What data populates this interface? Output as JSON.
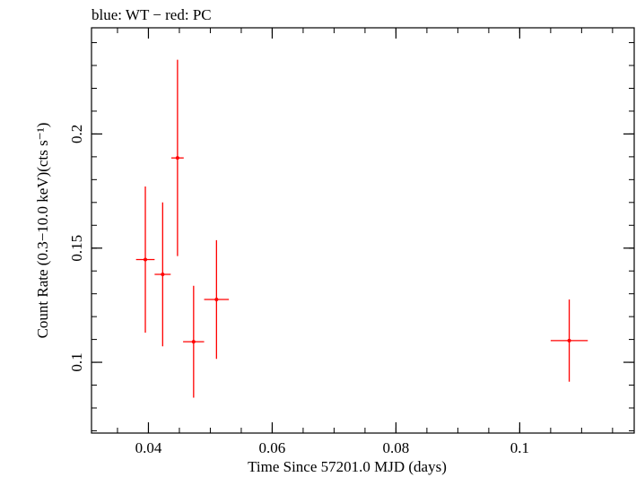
{
  "chart_data": {
    "type": "scatter",
    "title": "blue: WT − red: PC",
    "xlabel": "Time Since 57201.0 MJD (days)",
    "ylabel": "Count Rate (0.3−10.0 keV)(cts s⁻¹)",
    "xlim": [
      0.0308,
      0.1185
    ],
    "ylim": [
      0.069,
      0.2465
    ],
    "x_ticks": [
      {
        "value": 0.04,
        "label": "0.04"
      },
      {
        "value": 0.06,
        "label": "0.06"
      },
      {
        "value": 0.08,
        "label": "0.08"
      },
      {
        "value": 0.1,
        "label": "0.1"
      }
    ],
    "y_ticks": [
      {
        "value": 0.1,
        "label": "0.1"
      },
      {
        "value": 0.15,
        "label": "0.15"
      },
      {
        "value": 0.2,
        "label": "0.2"
      }
    ],
    "x_minor_step": 0.005,
    "y_minor_step": 0.01,
    "series": [
      {
        "name": "PC",
        "color": "#ff0000",
        "points": [
          {
            "x": 0.0395,
            "xerr": 0.0015,
            "y": 0.145,
            "yerr_lo": 0.032,
            "yerr_hi": 0.032
          },
          {
            "x": 0.0423,
            "xerr": 0.0013,
            "y": 0.1385,
            "yerr_lo": 0.0315,
            "yerr_hi": 0.0315
          },
          {
            "x": 0.0447,
            "xerr": 0.001,
            "y": 0.1895,
            "yerr_lo": 0.043,
            "yerr_hi": 0.043
          },
          {
            "x": 0.0473,
            "xerr": 0.0017,
            "y": 0.109,
            "yerr_lo": 0.0245,
            "yerr_hi": 0.0245
          },
          {
            "x": 0.051,
            "xerr": 0.002,
            "y": 0.1275,
            "yerr_lo": 0.026,
            "yerr_hi": 0.026
          },
          {
            "x": 0.108,
            "xerr": 0.003,
            "y": 0.1095,
            "yerr_lo": 0.018,
            "yerr_hi": 0.018
          }
        ]
      }
    ]
  }
}
